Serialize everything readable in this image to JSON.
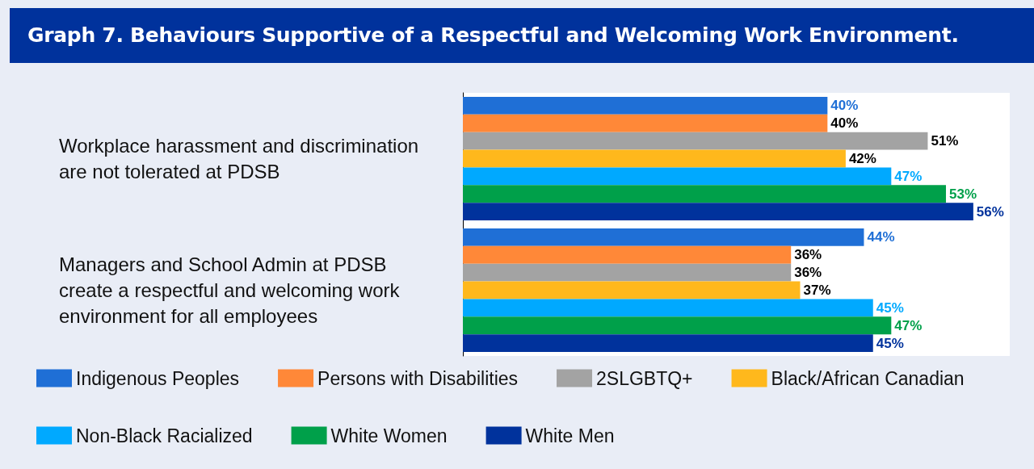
{
  "chart_data": {
    "type": "bar",
    "orientation": "horizontal",
    "title": "Graph 7. Behaviours Supportive of a Respectful and Welcoming Work Environment.",
    "categories": [
      "Workplace harassment and discrimination are not tolerated at PDSB",
      "Managers and School Admin at PDSB create a respectful and welcoming work environment for all employees"
    ],
    "series": [
      {
        "name": "Indigenous Peoples",
        "color": "#1f6fd6",
        "values": [
          40,
          44
        ],
        "value_labels": [
          "40%",
          "44%"
        ]
      },
      {
        "name": "Persons with Disabilities",
        "color": "#ff8838",
        "values": [
          40,
          36
        ],
        "value_labels": [
          "40%",
          "36%"
        ]
      },
      {
        "name": "2SLGBTQ+",
        "color": "#a3a3a3",
        "values": [
          51,
          36
        ],
        "value_labels": [
          "51%",
          "36%"
        ]
      },
      {
        "name": "Black/African Canadian",
        "color": "#ffb81c",
        "values": [
          42,
          37
        ],
        "value_labels": [
          "42%",
          "37%"
        ]
      },
      {
        "name": "Non-Black Racialized",
        "color": "#00a9ff",
        "values": [
          47,
          45
        ],
        "value_labels": [
          "47%",
          "45%"
        ]
      },
      {
        "name": "White Women",
        "color": "#00a04a",
        "values": [
          53,
          47
        ],
        "value_labels": [
          "53%",
          "47%"
        ]
      },
      {
        "name": "White Men",
        "color": "#00329c",
        "values": [
          56,
          45
        ],
        "value_labels": [
          "56%",
          "45%"
        ]
      }
    ],
    "legend": "bottom"
  }
}
